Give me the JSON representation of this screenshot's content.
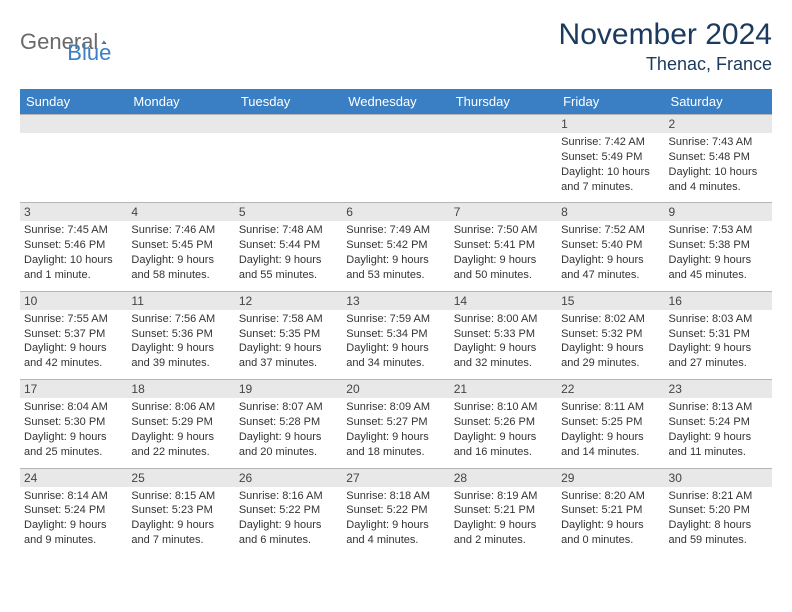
{
  "brand": {
    "part1": "General",
    "part2": "Blue"
  },
  "title": "November 2024",
  "location": "Thenac, France",
  "colors": {
    "header_bg": "#3a7fc4",
    "header_text": "#ffffff",
    "daynum_bg": "#e8e8e8",
    "title_color": "#1c3a5e",
    "logo_gray": "#6a6a6a",
    "logo_blue": "#3a7fc4",
    "border": "#b5b5b5",
    "body_text": "#333333",
    "background": "#ffffff"
  },
  "typography": {
    "title_fontsize": 30,
    "location_fontsize": 18,
    "weekday_fontsize": 13,
    "daynum_fontsize": 12,
    "info_fontsize": 11,
    "font_family": "Arial"
  },
  "weekdays": [
    "Sunday",
    "Monday",
    "Tuesday",
    "Wednesday",
    "Thursday",
    "Friday",
    "Saturday"
  ],
  "weeks": [
    [
      null,
      null,
      null,
      null,
      null,
      {
        "n": "1",
        "sunrise": "7:42 AM",
        "sunset": "5:49 PM",
        "daylight": "10 hours and 7 minutes."
      },
      {
        "n": "2",
        "sunrise": "7:43 AM",
        "sunset": "5:48 PM",
        "daylight": "10 hours and 4 minutes."
      }
    ],
    [
      {
        "n": "3",
        "sunrise": "7:45 AM",
        "sunset": "5:46 PM",
        "daylight": "10 hours and 1 minute."
      },
      {
        "n": "4",
        "sunrise": "7:46 AM",
        "sunset": "5:45 PM",
        "daylight": "9 hours and 58 minutes."
      },
      {
        "n": "5",
        "sunrise": "7:48 AM",
        "sunset": "5:44 PM",
        "daylight": "9 hours and 55 minutes."
      },
      {
        "n": "6",
        "sunrise": "7:49 AM",
        "sunset": "5:42 PM",
        "daylight": "9 hours and 53 minutes."
      },
      {
        "n": "7",
        "sunrise": "7:50 AM",
        "sunset": "5:41 PM",
        "daylight": "9 hours and 50 minutes."
      },
      {
        "n": "8",
        "sunrise": "7:52 AM",
        "sunset": "5:40 PM",
        "daylight": "9 hours and 47 minutes."
      },
      {
        "n": "9",
        "sunrise": "7:53 AM",
        "sunset": "5:38 PM",
        "daylight": "9 hours and 45 minutes."
      }
    ],
    [
      {
        "n": "10",
        "sunrise": "7:55 AM",
        "sunset": "5:37 PM",
        "daylight": "9 hours and 42 minutes."
      },
      {
        "n": "11",
        "sunrise": "7:56 AM",
        "sunset": "5:36 PM",
        "daylight": "9 hours and 39 minutes."
      },
      {
        "n": "12",
        "sunrise": "7:58 AM",
        "sunset": "5:35 PM",
        "daylight": "9 hours and 37 minutes."
      },
      {
        "n": "13",
        "sunrise": "7:59 AM",
        "sunset": "5:34 PM",
        "daylight": "9 hours and 34 minutes."
      },
      {
        "n": "14",
        "sunrise": "8:00 AM",
        "sunset": "5:33 PM",
        "daylight": "9 hours and 32 minutes."
      },
      {
        "n": "15",
        "sunrise": "8:02 AM",
        "sunset": "5:32 PM",
        "daylight": "9 hours and 29 minutes."
      },
      {
        "n": "16",
        "sunrise": "8:03 AM",
        "sunset": "5:31 PM",
        "daylight": "9 hours and 27 minutes."
      }
    ],
    [
      {
        "n": "17",
        "sunrise": "8:04 AM",
        "sunset": "5:30 PM",
        "daylight": "9 hours and 25 minutes."
      },
      {
        "n": "18",
        "sunrise": "8:06 AM",
        "sunset": "5:29 PM",
        "daylight": "9 hours and 22 minutes."
      },
      {
        "n": "19",
        "sunrise": "8:07 AM",
        "sunset": "5:28 PM",
        "daylight": "9 hours and 20 minutes."
      },
      {
        "n": "20",
        "sunrise": "8:09 AM",
        "sunset": "5:27 PM",
        "daylight": "9 hours and 18 minutes."
      },
      {
        "n": "21",
        "sunrise": "8:10 AM",
        "sunset": "5:26 PM",
        "daylight": "9 hours and 16 minutes."
      },
      {
        "n": "22",
        "sunrise": "8:11 AM",
        "sunset": "5:25 PM",
        "daylight": "9 hours and 14 minutes."
      },
      {
        "n": "23",
        "sunrise": "8:13 AM",
        "sunset": "5:24 PM",
        "daylight": "9 hours and 11 minutes."
      }
    ],
    [
      {
        "n": "24",
        "sunrise": "8:14 AM",
        "sunset": "5:24 PM",
        "daylight": "9 hours and 9 minutes."
      },
      {
        "n": "25",
        "sunrise": "8:15 AM",
        "sunset": "5:23 PM",
        "daylight": "9 hours and 7 minutes."
      },
      {
        "n": "26",
        "sunrise": "8:16 AM",
        "sunset": "5:22 PM",
        "daylight": "9 hours and 6 minutes."
      },
      {
        "n": "27",
        "sunrise": "8:18 AM",
        "sunset": "5:22 PM",
        "daylight": "9 hours and 4 minutes."
      },
      {
        "n": "28",
        "sunrise": "8:19 AM",
        "sunset": "5:21 PM",
        "daylight": "9 hours and 2 minutes."
      },
      {
        "n": "29",
        "sunrise": "8:20 AM",
        "sunset": "5:21 PM",
        "daylight": "9 hours and 0 minutes."
      },
      {
        "n": "30",
        "sunrise": "8:21 AM",
        "sunset": "5:20 PM",
        "daylight": "8 hours and 59 minutes."
      }
    ]
  ],
  "labels": {
    "sunrise": "Sunrise:",
    "sunset": "Sunset:",
    "daylight": "Daylight:"
  }
}
